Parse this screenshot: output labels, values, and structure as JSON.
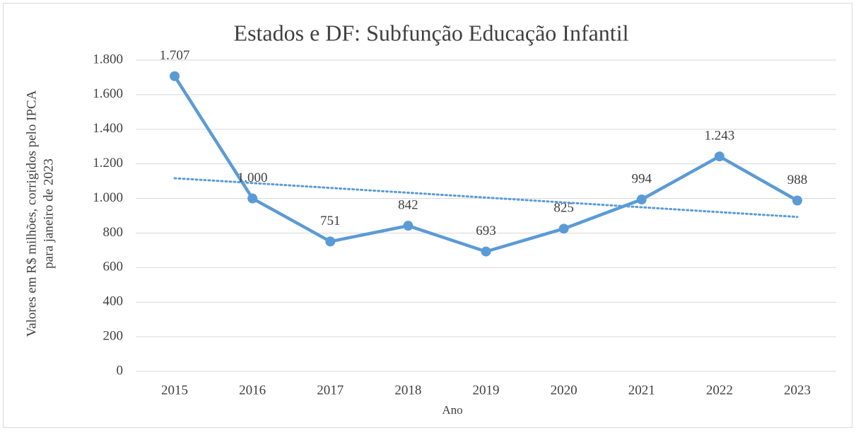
{
  "chart_data": {
    "type": "line",
    "title": "Estados e DF: Subfunção Educação Infantil",
    "y_label": [
      "Valores em R$ milhões,  corrigidos pelo IPCA",
      "para janeiro de 2023"
    ],
    "x_label": "Ano",
    "categories": [
      "2015",
      "2016",
      "2017",
      "2018",
      "2019",
      "2020",
      "2021",
      "2022",
      "2023"
    ],
    "series": [
      {
        "color": "#5b9bd5",
        "style": "solid",
        "values": [
          1707,
          1000,
          751,
          842,
          693,
          825,
          994,
          1243,
          988
        ],
        "value_labels": [
          "1.707",
          "1.000",
          "751",
          "842",
          "693",
          "825",
          "994",
          "1.243",
          "988"
        ]
      },
      {
        "color": "#5b9bd5",
        "style": "dotted",
        "values": [
          1117,
          1089,
          1061,
          1033,
          1005,
          977,
          949,
          921,
          893
        ]
      }
    ],
    "ylim": [
      0,
      1800
    ],
    "yticks": [
      0,
      200,
      400,
      600,
      800,
      {
        "value": 1000,
        "label": "1.000"
      },
      {
        "value": 1200,
        "label": "1.200"
      },
      {
        "value": 1400,
        "label": "1.400"
      },
      {
        "value": 1600,
        "label": "1.600"
      },
      {
        "value": 1800,
        "label": "1.800"
      }
    ],
    "grid": true
  }
}
